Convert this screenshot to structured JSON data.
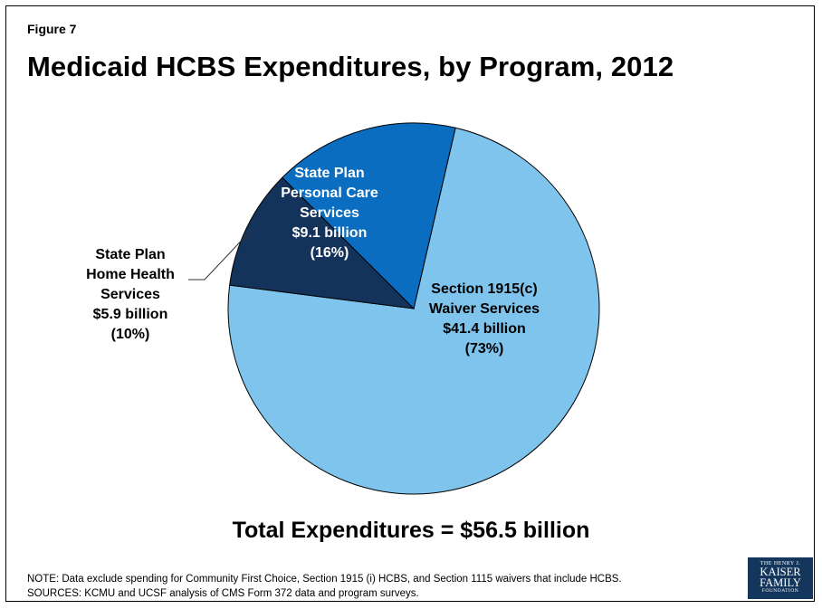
{
  "figure_label": "Figure 7",
  "title": "Medicaid HCBS Expenditures, by Program, 2012",
  "total": "Total Expenditures = $56.5 billion",
  "notes": [
    "NOTE: Data exclude spending for Community First Choice, Section 1915 (i) HCBS, and Section 1115 waivers that include HCBS.",
    "SOURCES: KCMU and UCSF analysis of CMS Form 372 data and program surveys."
  ],
  "logo": {
    "line1": "THE HENRY J.",
    "line2": "KAISER",
    "line3": "FAMILY",
    "line4": "FOUNDATION"
  },
  "colors": {
    "waiver": "#7fc4ec",
    "personal_care": "#0a6dbf",
    "home_health": "#13335a",
    "stroke": "#000000",
    "logo_bg": "#14365c"
  },
  "chart_data": {
    "type": "pie",
    "start_angle_deg": 13,
    "direction": "clockwise",
    "unit": "billion",
    "slices": [
      {
        "key": "waiver",
        "value": 41.4,
        "percent": 73,
        "label_lines": [
          "Section 1915(c)",
          "Waiver Services",
          "$41.4 billion",
          "(73%)"
        ],
        "label_color": "#000000"
      },
      {
        "key": "home_health",
        "value": 5.9,
        "percent": 10,
        "label_lines": [
          "State Plan",
          "Home Health",
          "Services",
          "$5.9 billion",
          "(10%)"
        ],
        "label_color": "#000000"
      },
      {
        "key": "personal_care",
        "value": 9.1,
        "percent": 16,
        "label_lines": [
          "State Plan",
          "Personal Care",
          "Services",
          "$9.1 billion",
          "(16%)"
        ],
        "label_color": "#ffffff"
      }
    ]
  }
}
